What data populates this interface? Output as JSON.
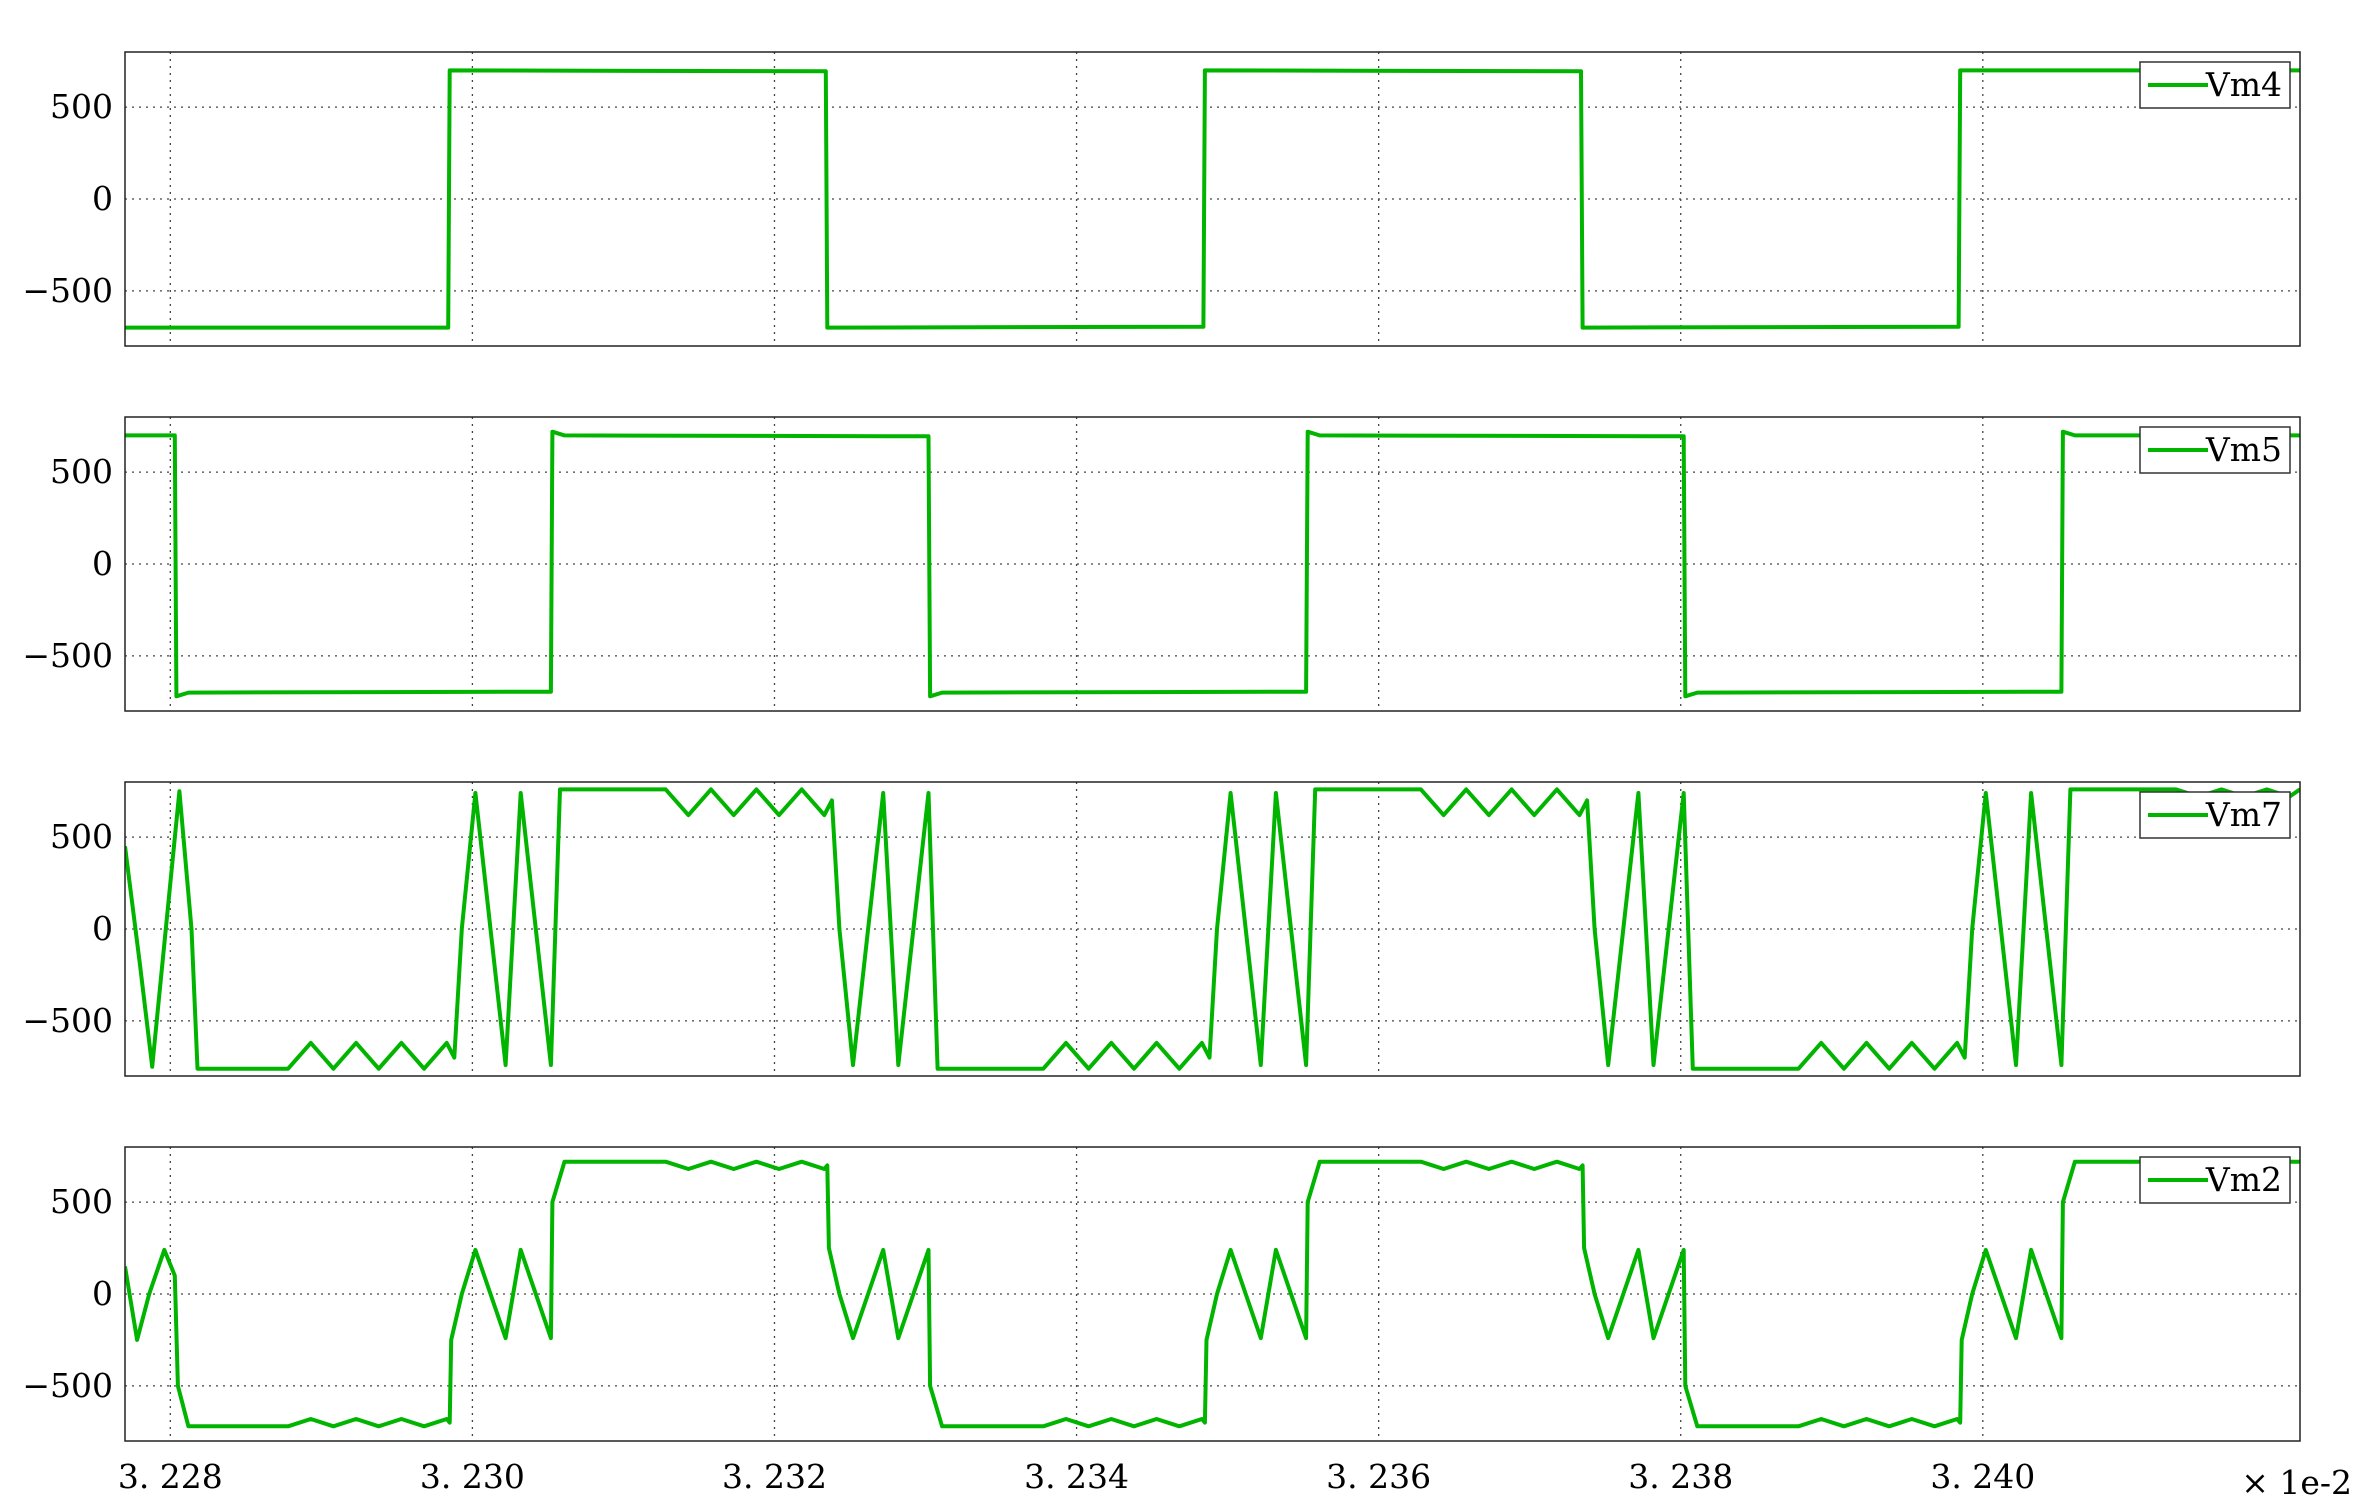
{
  "chart_data": {
    "type": "line",
    "line_color": "#00b400",
    "grid": true,
    "legend_placement": "top-right",
    "x_scale_label": "× 1e-2",
    "x_ticks": [
      3.228,
      3.23,
      3.232,
      3.234,
      3.236,
      3.238,
      3.24
    ],
    "x_tick_labels": [
      "3. 228",
      "3. 230",
      "3. 232",
      "3. 234",
      "3. 236",
      "3. 238",
      "3. 240"
    ],
    "xlim": [
      3.2277,
      3.2421
    ],
    "panels": [
      {
        "series_name": "Vm4",
        "ylim": [
          -800,
          800
        ],
        "y_ticks": [
          500,
          0,
          -500
        ],
        "y_tick_labels": [
          "500",
          "0",
          "−500"
        ],
        "points": [
          [
            3.2277,
            -700
          ],
          [
            3.22984,
            -700
          ],
          [
            3.22985,
            700
          ],
          [
            3.23234,
            695
          ],
          [
            3.23235,
            -700
          ],
          [
            3.23484,
            -695
          ],
          [
            3.23485,
            700
          ],
          [
            3.23734,
            695
          ],
          [
            3.23735,
            -700
          ],
          [
            3.23984,
            -695
          ],
          [
            3.23985,
            700
          ],
          [
            3.2421,
            700
          ]
        ]
      },
      {
        "series_name": "Vm5",
        "ylim": [
          -800,
          800
        ],
        "y_ticks": [
          500,
          0,
          -500
        ],
        "y_tick_labels": [
          "500",
          "0",
          "−500"
        ],
        "points": [
          [
            3.2277,
            700
          ],
          [
            3.22803,
            700
          ],
          [
            3.22804,
            -720
          ],
          [
            3.22812,
            -700
          ],
          [
            3.23052,
            -695
          ],
          [
            3.23053,
            720
          ],
          [
            3.23061,
            700
          ],
          [
            3.23302,
            695
          ],
          [
            3.23303,
            -720
          ],
          [
            3.23311,
            -700
          ],
          [
            3.23552,
            -695
          ],
          [
            3.23553,
            720
          ],
          [
            3.23561,
            700
          ],
          [
            3.23802,
            695
          ],
          [
            3.23803,
            -720
          ],
          [
            3.23811,
            -700
          ],
          [
            3.24052,
            -695
          ],
          [
            3.24053,
            720
          ],
          [
            3.24061,
            700
          ],
          [
            3.2421,
            700
          ]
        ]
      },
      {
        "series_name": "Vm7",
        "ylim": [
          -800,
          800
        ],
        "y_ticks": [
          500,
          0,
          -500
        ],
        "y_tick_labels": [
          "500",
          "0",
          "−500"
        ],
        "points": [
          [
            3.2277,
            450
          ],
          [
            3.2278,
            -200
          ],
          [
            3.22788,
            -750
          ],
          [
            3.22797,
            0
          ],
          [
            3.22806,
            750
          ],
          [
            3.22814,
            0
          ],
          [
            3.22818,
            -760
          ],
          [
            3.22878,
            -760
          ],
          [
            3.22893,
            -620
          ],
          [
            3.22908,
            -760
          ],
          [
            3.22923,
            -620
          ],
          [
            3.22938,
            -760
          ],
          [
            3.22953,
            -620
          ],
          [
            3.22968,
            -760
          ],
          [
            3.22983,
            -620
          ],
          [
            3.22988,
            -700
          ],
          [
            3.22993,
            0
          ],
          [
            3.23002,
            740
          ],
          [
            3.23012,
            0
          ],
          [
            3.23022,
            -740
          ],
          [
            3.23032,
            740
          ],
          [
            3.23042,
            0
          ],
          [
            3.23052,
            -740
          ],
          [
            3.23058,
            760
          ],
          [
            3.23128,
            760
          ],
          [
            3.23143,
            620
          ],
          [
            3.23158,
            760
          ],
          [
            3.23173,
            620
          ],
          [
            3.23188,
            760
          ],
          [
            3.23203,
            620
          ],
          [
            3.23218,
            760
          ],
          [
            3.23233,
            620
          ],
          [
            3.23238,
            700
          ],
          [
            3.23243,
            0
          ],
          [
            3.23252,
            -740
          ],
          [
            3.23262,
            0
          ],
          [
            3.23272,
            740
          ],
          [
            3.23282,
            -740
          ],
          [
            3.23292,
            0
          ],
          [
            3.23302,
            740
          ],
          [
            3.23308,
            -760
          ],
          [
            3.23378,
            -760
          ],
          [
            3.23393,
            -620
          ],
          [
            3.23408,
            -760
          ],
          [
            3.23423,
            -620
          ],
          [
            3.23438,
            -760
          ],
          [
            3.23453,
            -620
          ],
          [
            3.23468,
            -760
          ],
          [
            3.23483,
            -620
          ],
          [
            3.23488,
            -700
          ],
          [
            3.23493,
            0
          ],
          [
            3.23502,
            740
          ],
          [
            3.23512,
            0
          ],
          [
            3.23522,
            -740
          ],
          [
            3.23532,
            740
          ],
          [
            3.23542,
            0
          ],
          [
            3.23552,
            -740
          ],
          [
            3.23558,
            760
          ],
          [
            3.23628,
            760
          ],
          [
            3.23643,
            620
          ],
          [
            3.23658,
            760
          ],
          [
            3.23673,
            620
          ],
          [
            3.23688,
            760
          ],
          [
            3.23703,
            620
          ],
          [
            3.23718,
            760
          ],
          [
            3.23733,
            620
          ],
          [
            3.23738,
            700
          ],
          [
            3.23743,
            0
          ],
          [
            3.23752,
            -740
          ],
          [
            3.23762,
            0
          ],
          [
            3.23772,
            740
          ],
          [
            3.23782,
            -740
          ],
          [
            3.23792,
            0
          ],
          [
            3.23802,
            740
          ],
          [
            3.23808,
            -760
          ],
          [
            3.23878,
            -760
          ],
          [
            3.23893,
            -620
          ],
          [
            3.23908,
            -760
          ],
          [
            3.23923,
            -620
          ],
          [
            3.23938,
            -760
          ],
          [
            3.23953,
            -620
          ],
          [
            3.23968,
            -760
          ],
          [
            3.23983,
            -620
          ],
          [
            3.23988,
            -700
          ],
          [
            3.23993,
            0
          ],
          [
            3.24002,
            740
          ],
          [
            3.24012,
            0
          ],
          [
            3.24022,
            -740
          ],
          [
            3.24032,
            740
          ],
          [
            3.24042,
            0
          ],
          [
            3.24052,
            -740
          ],
          [
            3.24058,
            760
          ],
          [
            3.24128,
            760
          ],
          [
            3.24143,
            720
          ],
          [
            3.24158,
            760
          ],
          [
            3.24173,
            720
          ],
          [
            3.24188,
            760
          ],
          [
            3.24203,
            720
          ],
          [
            3.2421,
            760
          ]
        ]
      },
      {
        "series_name": "Vm2",
        "ylim": [
          -800,
          800
        ],
        "y_ticks": [
          500,
          0,
          -500
        ],
        "y_tick_labels": [
          "500",
          "0",
          "−500"
        ],
        "points": [
          [
            3.2277,
            150
          ],
          [
            3.22778,
            -250
          ],
          [
            3.22786,
            0
          ],
          [
            3.22796,
            240
          ],
          [
            3.22803,
            100
          ],
          [
            3.22805,
            -500
          ],
          [
            3.22812,
            -720
          ],
          [
            3.22878,
            -720
          ],
          [
            3.22893,
            -680
          ],
          [
            3.22908,
            -720
          ],
          [
            3.22923,
            -680
          ],
          [
            3.22938,
            -720
          ],
          [
            3.22953,
            -680
          ],
          [
            3.22968,
            -720
          ],
          [
            3.22983,
            -680
          ],
          [
            3.22985,
            -700
          ],
          [
            3.22986,
            -250
          ],
          [
            3.22993,
            0
          ],
          [
            3.23002,
            240
          ],
          [
            3.23012,
            0
          ],
          [
            3.23022,
            -240
          ],
          [
            3.23032,
            240
          ],
          [
            3.23042,
            0
          ],
          [
            3.23052,
            -240
          ],
          [
            3.23053,
            500
          ],
          [
            3.23061,
            720
          ],
          [
            3.23128,
            720
          ],
          [
            3.23143,
            680
          ],
          [
            3.23158,
            720
          ],
          [
            3.23173,
            680
          ],
          [
            3.23188,
            720
          ],
          [
            3.23203,
            680
          ],
          [
            3.23218,
            720
          ],
          [
            3.23233,
            680
          ],
          [
            3.23235,
            700
          ],
          [
            3.23236,
            250
          ],
          [
            3.23243,
            0
          ],
          [
            3.23252,
            -240
          ],
          [
            3.23262,
            0
          ],
          [
            3.23272,
            240
          ],
          [
            3.23282,
            -240
          ],
          [
            3.23292,
            0
          ],
          [
            3.23302,
            240
          ],
          [
            3.23303,
            -500
          ],
          [
            3.23311,
            -720
          ],
          [
            3.23378,
            -720
          ],
          [
            3.23393,
            -680
          ],
          [
            3.23408,
            -720
          ],
          [
            3.23423,
            -680
          ],
          [
            3.23438,
            -720
          ],
          [
            3.23453,
            -680
          ],
          [
            3.23468,
            -720
          ],
          [
            3.23483,
            -680
          ],
          [
            3.23485,
            -700
          ],
          [
            3.23486,
            -250
          ],
          [
            3.23493,
            0
          ],
          [
            3.23502,
            240
          ],
          [
            3.23512,
            0
          ],
          [
            3.23522,
            -240
          ],
          [
            3.23532,
            240
          ],
          [
            3.23542,
            0
          ],
          [
            3.23552,
            -240
          ],
          [
            3.23553,
            500
          ],
          [
            3.23561,
            720
          ],
          [
            3.23628,
            720
          ],
          [
            3.23643,
            680
          ],
          [
            3.23658,
            720
          ],
          [
            3.23673,
            680
          ],
          [
            3.23688,
            720
          ],
          [
            3.23703,
            680
          ],
          [
            3.23718,
            720
          ],
          [
            3.23733,
            680
          ],
          [
            3.23735,
            700
          ],
          [
            3.23736,
            250
          ],
          [
            3.23743,
            0
          ],
          [
            3.23752,
            -240
          ],
          [
            3.23762,
            0
          ],
          [
            3.23772,
            240
          ],
          [
            3.23782,
            -240
          ],
          [
            3.23792,
            0
          ],
          [
            3.23802,
            240
          ],
          [
            3.23803,
            -500
          ],
          [
            3.23811,
            -720
          ],
          [
            3.23878,
            -720
          ],
          [
            3.23893,
            -680
          ],
          [
            3.23908,
            -720
          ],
          [
            3.23923,
            -680
          ],
          [
            3.23938,
            -720
          ],
          [
            3.23953,
            -680
          ],
          [
            3.23968,
            -720
          ],
          [
            3.23983,
            -680
          ],
          [
            3.23985,
            -700
          ],
          [
            3.23986,
            -250
          ],
          [
            3.23993,
            0
          ],
          [
            3.24002,
            240
          ],
          [
            3.24012,
            0
          ],
          [
            3.24022,
            -240
          ],
          [
            3.24032,
            240
          ],
          [
            3.24042,
            0
          ],
          [
            3.24052,
            -240
          ],
          [
            3.24053,
            500
          ],
          [
            3.24061,
            720
          ],
          [
            3.2421,
            720
          ]
        ]
      }
    ]
  }
}
